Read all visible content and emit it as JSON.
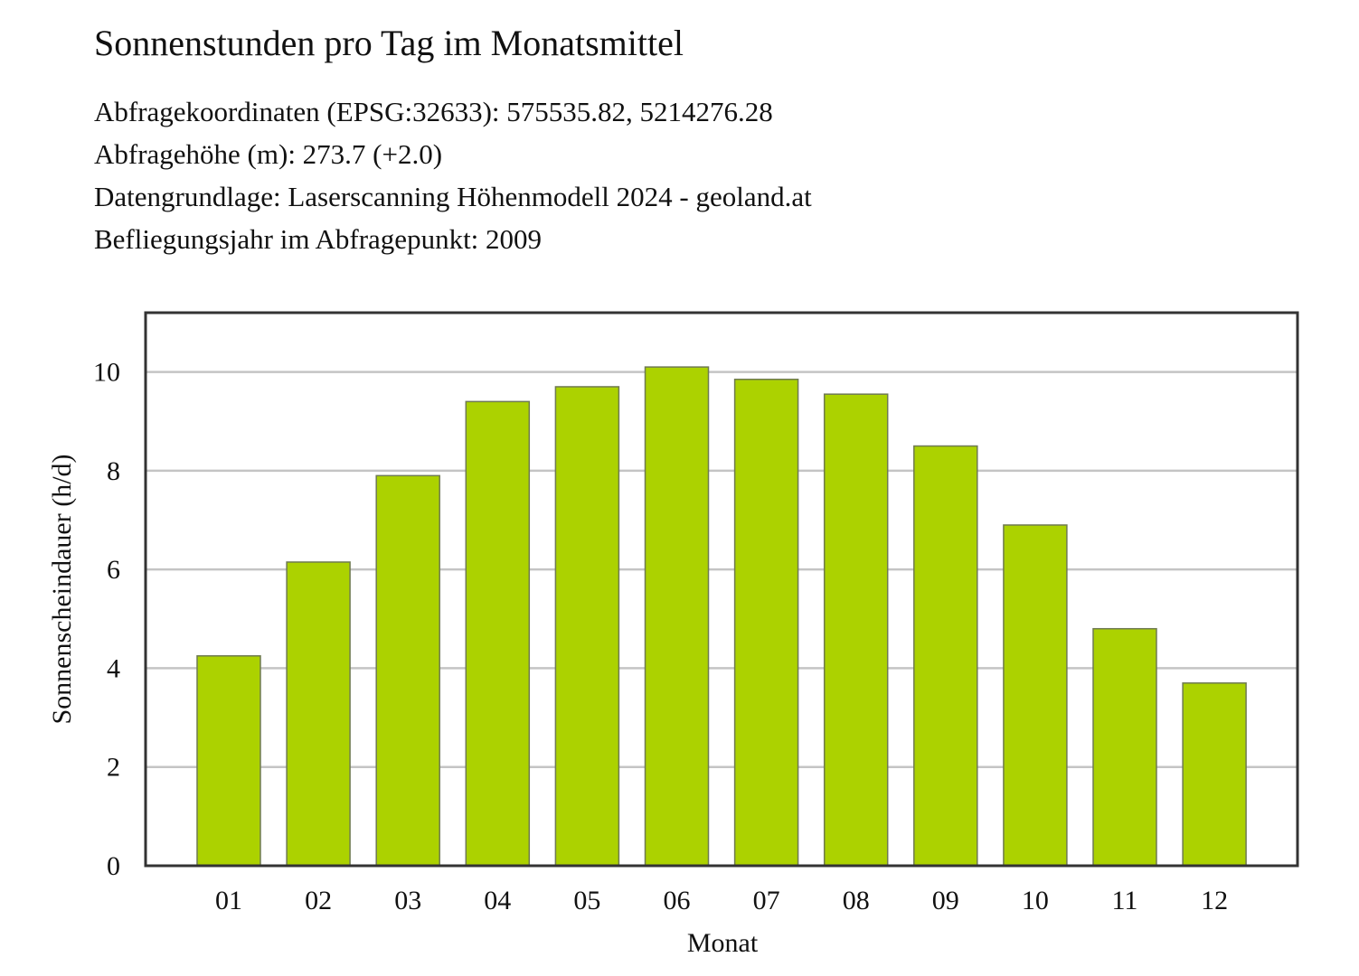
{
  "chart_data": {
    "type": "bar",
    "title": "Sonnenstunden pro Tag im Monatsmittel",
    "subtitle_lines": [
      "Abfragekoordinaten (EPSG:32633): 575535.82, 5214276.28",
      "Abfragehöhe (m): 273.7 (+2.0)",
      "Datengrundlage: Laserscanning Höhenmodell 2024 - geoland.at",
      "Befliegungsjahr im Abfragepunkt: 2009"
    ],
    "categories": [
      "01",
      "02",
      "03",
      "04",
      "05",
      "06",
      "07",
      "08",
      "09",
      "10",
      "11",
      "12"
    ],
    "values": [
      4.25,
      6.15,
      7.9,
      9.4,
      9.7,
      10.1,
      9.85,
      9.55,
      8.5,
      6.9,
      4.8,
      3.7
    ],
    "xlabel": "Monat",
    "ylabel": "Sonnenscheindauer (h/d)",
    "ylim": [
      0,
      11.2
    ],
    "yticks": [
      0,
      2,
      4,
      6,
      8,
      10
    ],
    "grid": "horizontal",
    "legend": "none",
    "colors": {
      "bar_fill": "#acd200",
      "bar_stroke": "#6f7a52",
      "grid": "#c4c4c4",
      "frame": "#333333"
    }
  }
}
